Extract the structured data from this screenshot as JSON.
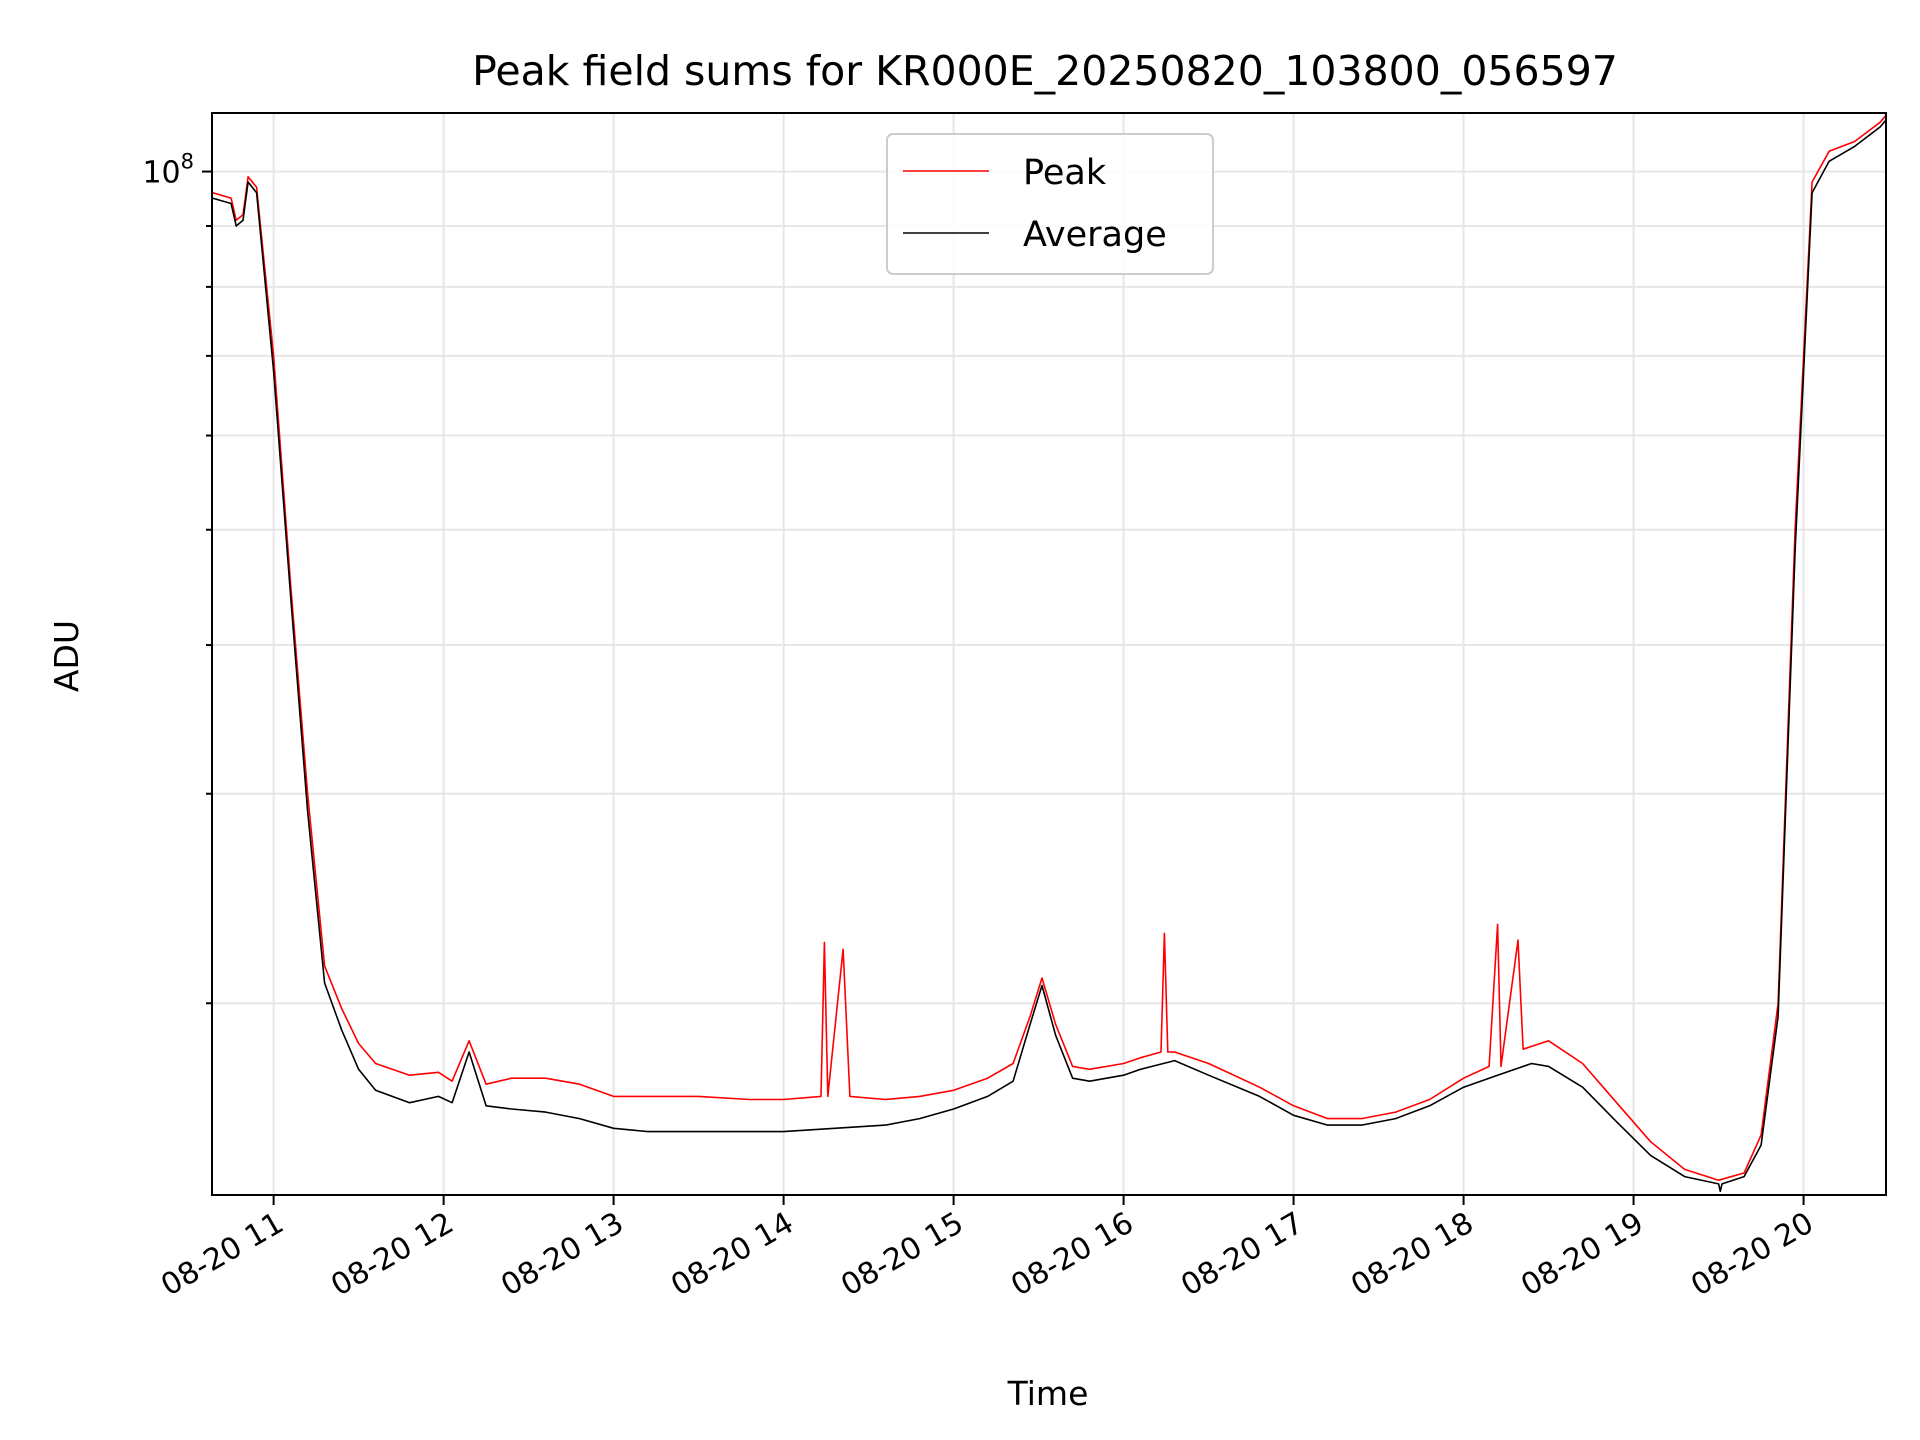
{
  "chart_data": {
    "type": "line",
    "title": "Peak field sums for KR000E_20250820_103800_056597",
    "xlabel": "Time",
    "ylabel": "ADU",
    "yscale": "log",
    "ylim": [
      13800000,
      112000000
    ],
    "x_range_hours": [
      10.6375,
      20.485
    ],
    "x_ticks": [
      "08-20 11",
      "08-20 12",
      "08-20 13",
      "08-20 14",
      "08-20 15",
      "08-20 16",
      "08-20 17",
      "08-20 18",
      "08-20 19",
      "08-20 20"
    ],
    "y_major_tick_label": "10^8",
    "grid": true,
    "legend_position": "top-center",
    "series": [
      {
        "name": "Peak",
        "color": "#ff0000",
        "points": [
          [
            10.64,
            96000000
          ],
          [
            10.75,
            95000000
          ],
          [
            10.78,
            91000000
          ],
          [
            10.82,
            92000000
          ],
          [
            10.85,
            99000000
          ],
          [
            10.9,
            97000000
          ],
          [
            11.0,
            70000000
          ],
          [
            11.1,
            45000000
          ],
          [
            11.2,
            30000000
          ],
          [
            11.3,
            21500000
          ],
          [
            11.4,
            19800000
          ],
          [
            11.5,
            18500000
          ],
          [
            11.6,
            17800000
          ],
          [
            11.8,
            17400000
          ],
          [
            11.97,
            17500000
          ],
          [
            12.05,
            17200000
          ],
          [
            12.15,
            18600000
          ],
          [
            12.25,
            17100000
          ],
          [
            12.4,
            17300000
          ],
          [
            12.6,
            17300000
          ],
          [
            12.8,
            17100000
          ],
          [
            13.0,
            16700000
          ],
          [
            13.2,
            16700000
          ],
          [
            13.5,
            16700000
          ],
          [
            13.8,
            16600000
          ],
          [
            14.0,
            16600000
          ],
          [
            14.22,
            16700000
          ],
          [
            14.24,
            22500000
          ],
          [
            14.26,
            16700000
          ],
          [
            14.35,
            22200000
          ],
          [
            14.39,
            16700000
          ],
          [
            14.6,
            16600000
          ],
          [
            14.8,
            16700000
          ],
          [
            15.0,
            16900000
          ],
          [
            15.2,
            17300000
          ],
          [
            15.35,
            17800000
          ],
          [
            15.45,
            19500000
          ],
          [
            15.52,
            21000000
          ],
          [
            15.6,
            19200000
          ],
          [
            15.7,
            17700000
          ],
          [
            15.8,
            17600000
          ],
          [
            16.0,
            17800000
          ],
          [
            16.1,
            18000000
          ],
          [
            16.22,
            18200000
          ],
          [
            16.24,
            22900000
          ],
          [
            16.26,
            18200000
          ],
          [
            16.3,
            18200000
          ],
          [
            16.5,
            17800000
          ],
          [
            16.8,
            17000000
          ],
          [
            17.0,
            16400000
          ],
          [
            17.2,
            16000000
          ],
          [
            17.4,
            16000000
          ],
          [
            17.6,
            16200000
          ],
          [
            17.8,
            16600000
          ],
          [
            18.0,
            17300000
          ],
          [
            18.15,
            17700000
          ],
          [
            18.2,
            23300000
          ],
          [
            18.22,
            17700000
          ],
          [
            18.32,
            22600000
          ],
          [
            18.35,
            18300000
          ],
          [
            18.5,
            18600000
          ],
          [
            18.7,
            17800000
          ],
          [
            18.9,
            16500000
          ],
          [
            19.1,
            15300000
          ],
          [
            19.3,
            14500000
          ],
          [
            19.5,
            14200000
          ],
          [
            19.65,
            14400000
          ],
          [
            19.75,
            15500000
          ],
          [
            19.85,
            20000000
          ],
          [
            19.95,
            50000000
          ],
          [
            20.05,
            98000000
          ],
          [
            20.15,
            104000000
          ],
          [
            20.3,
            106000000
          ],
          [
            20.45,
            110000000
          ],
          [
            20.485,
            111500000
          ]
        ]
      },
      {
        "name": "Average",
        "color": "#000000",
        "points": [
          [
            10.64,
            95000000
          ],
          [
            10.75,
            94000000
          ],
          [
            10.78,
            90000000
          ],
          [
            10.82,
            91000000
          ],
          [
            10.85,
            98000000
          ],
          [
            10.9,
            96000000
          ],
          [
            11.0,
            68000000
          ],
          [
            11.1,
            44000000
          ],
          [
            11.2,
            29000000
          ],
          [
            11.3,
            20800000
          ],
          [
            11.4,
            19000000
          ],
          [
            11.5,
            17600000
          ],
          [
            11.6,
            16900000
          ],
          [
            11.8,
            16500000
          ],
          [
            11.97,
            16700000
          ],
          [
            12.05,
            16500000
          ],
          [
            12.15,
            18200000
          ],
          [
            12.25,
            16400000
          ],
          [
            12.4,
            16300000
          ],
          [
            12.6,
            16200000
          ],
          [
            12.8,
            16000000
          ],
          [
            13.0,
            15700000
          ],
          [
            13.2,
            15600000
          ],
          [
            13.5,
            15600000
          ],
          [
            13.8,
            15600000
          ],
          [
            14.0,
            15600000
          ],
          [
            14.3,
            15700000
          ],
          [
            14.6,
            15800000
          ],
          [
            14.8,
            16000000
          ],
          [
            15.0,
            16300000
          ],
          [
            15.2,
            16700000
          ],
          [
            15.35,
            17200000
          ],
          [
            15.45,
            19200000
          ],
          [
            15.52,
            20700000
          ],
          [
            15.6,
            18800000
          ],
          [
            15.7,
            17300000
          ],
          [
            15.8,
            17200000
          ],
          [
            16.0,
            17400000
          ],
          [
            16.1,
            17600000
          ],
          [
            16.3,
            17900000
          ],
          [
            16.5,
            17400000
          ],
          [
            16.8,
            16700000
          ],
          [
            17.0,
            16100000
          ],
          [
            17.2,
            15800000
          ],
          [
            17.4,
            15800000
          ],
          [
            17.6,
            16000000
          ],
          [
            17.8,
            16400000
          ],
          [
            18.0,
            17000000
          ],
          [
            18.2,
            17400000
          ],
          [
            18.4,
            17800000
          ],
          [
            18.5,
            17700000
          ],
          [
            18.7,
            17000000
          ],
          [
            18.9,
            15900000
          ],
          [
            19.1,
            14900000
          ],
          [
            19.3,
            14300000
          ],
          [
            19.5,
            14100000
          ],
          [
            19.51,
            13900000
          ],
          [
            19.52,
            14100000
          ],
          [
            19.65,
            14300000
          ],
          [
            19.75,
            15200000
          ],
          [
            19.85,
            19500000
          ],
          [
            19.95,
            48000000
          ],
          [
            20.05,
            96000000
          ],
          [
            20.15,
            102000000
          ],
          [
            20.3,
            105000000
          ],
          [
            20.45,
            109000000
          ],
          [
            20.485,
            110500000
          ]
        ]
      }
    ]
  }
}
